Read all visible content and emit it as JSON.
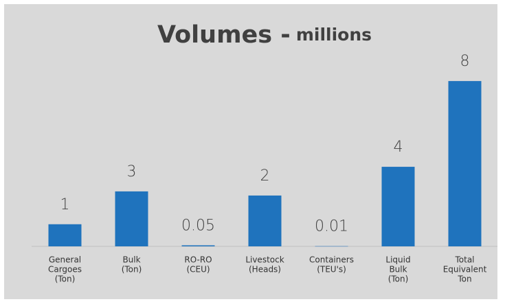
{
  "chart_data": {
    "type": "bar",
    "title": "Volumes -",
    "title_unit": "millions",
    "categories": [
      [
        "General",
        "Cargoes",
        "(Ton)"
      ],
      [
        "Bulk",
        "(Ton)"
      ],
      [
        "RO-RO",
        "(CEU)"
      ],
      [
        "Livestock",
        "(Heads)"
      ],
      [
        "Containers",
        "(TEU's)"
      ],
      [
        "Liquid",
        "Bulk",
        "(Ton)"
      ],
      [
        "Total",
        "Equivalent",
        "Ton"
      ]
    ],
    "values": [
      1.07,
      2.66,
      0.05,
      2.46,
      0.01,
      3.85,
      8
    ],
    "value_labels": [
      "1",
      "3",
      "0.05",
      "2",
      "0.01",
      "4",
      "8"
    ],
    "color": "#1f73bd",
    "ylim": [
      0,
      9
    ]
  }
}
